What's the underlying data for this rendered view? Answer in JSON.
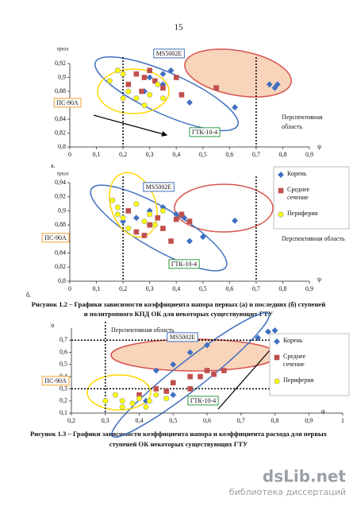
{
  "page_number": "15",
  "chart_data": [
    {
      "type": "scatter",
      "panel_label": "а.",
      "x_label": "ψ",
      "y_label": "ηпол",
      "xlim": [
        0,
        0.9
      ],
      "xticks": [
        0,
        {
          "value": 0.1,
          "label": "0,1"
        },
        {
          "value": 0.2,
          "label": "0,2"
        },
        {
          "value": 0.3,
          "label": "0,3"
        },
        {
          "value": 0.4,
          "label": "0,4"
        },
        {
          "value": 0.5,
          "label": "0,5"
        },
        {
          "value": 0.6,
          "label": "0,6"
        },
        {
          "value": 0.7,
          "label": "0,7"
        },
        {
          "value": 0.8,
          "label": "0,8"
        },
        {
          "value": 0.9,
          "label": "0,9"
        }
      ],
      "ylim": [
        0.8,
        0.92
      ],
      "yticks": [
        {
          "value": 0.8,
          "label": "0,8"
        },
        {
          "value": 0.82,
          "label": "0,82"
        },
        {
          "value": 0.84,
          "label": "0,84"
        },
        {
          "value": 0.86,
          "label": "0,86"
        },
        {
          "value": 0.88,
          "label": "0,88"
        },
        {
          "value": 0.9,
          "label": "0,9"
        },
        {
          "value": 0.92,
          "label": "0,92"
        }
      ],
      "vertical_lines": [
        0.2,
        0.7
      ],
      "series": [
        {
          "color": "#3f6fc0",
          "marker": "diamond",
          "x": [
            0.75,
            0.77,
            0.78,
            0.62,
            0.45,
            0.3,
            0.35,
            0.38,
            0.28,
            0.35
          ],
          "values": [
            0.89,
            0.885,
            0.89,
            0.857,
            0.864,
            0.9,
            0.905,
            0.91,
            0.88,
            0.89
          ]
        },
        {
          "color": "#c0504d",
          "marker": "square",
          "x": [
            0.55,
            0.3,
            0.25,
            0.28,
            0.32,
            0.4,
            0.22,
            0.27,
            0.35,
            0.42
          ],
          "values": [
            0.885,
            0.91,
            0.905,
            0.9,
            0.895,
            0.9,
            0.89,
            0.88,
            0.885,
            0.875
          ]
        },
        {
          "color": "#ffff00",
          "marker": "circle",
          "x": [
            0.18,
            0.2,
            0.15,
            0.22,
            0.25,
            0.3,
            0.33,
            0.2,
            0.28,
            0.35
          ],
          "values": [
            0.91,
            0.905,
            0.895,
            0.88,
            0.87,
            0.875,
            0.89,
            0.87,
            0.86,
            0.87
          ]
        }
      ],
      "annotations": [
        "MS5002E",
        "ПС-90А",
        "ГТК-10-4",
        "Перспективная",
        "область"
      ]
    },
    {
      "type": "scatter",
      "panel_label": "б.",
      "x_label": "ψ",
      "y_label": "ηпол",
      "legend": "right",
      "xlim": [
        0,
        0.9
      ],
      "xticks": [
        0,
        {
          "value": 0.1,
          "label": "0,1"
        },
        {
          "value": 0.2,
          "label": "0,2"
        },
        {
          "value": 0.3,
          "label": "0,3"
        },
        {
          "value": 0.4,
          "label": "0,4"
        },
        {
          "value": 0.5,
          "label": "0,5"
        },
        {
          "value": 0.6,
          "label": "0,6"
        },
        {
          "value": 0.7,
          "label": "0,7"
        },
        {
          "value": 0.8,
          "label": "0,8"
        },
        {
          "value": 0.9,
          "label": "0,9"
        }
      ],
      "ylim": [
        0.8,
        0.94
      ],
      "yticks": [
        {
          "value": 0.8,
          "label": "0,8"
        },
        {
          "value": 0.82,
          "label": "0,82"
        },
        {
          "value": 0.84,
          "label": "0,84"
        },
        {
          "value": 0.86,
          "label": "0,86"
        },
        {
          "value": 0.88,
          "label": "0,88"
        },
        {
          "value": 0.9,
          "label": "0,9"
        },
        {
          "value": 0.92,
          "label": "0,92"
        },
        {
          "value": 0.94,
          "label": "0,94"
        }
      ],
      "vertical_lines": [
        0.2,
        0.7
      ],
      "series": [
        {
          "name": "Корень",
          "color": "#3f6fc0",
          "marker": "diamond",
          "x": [
            0.62,
            0.5,
            0.45,
            0.3,
            0.35,
            0.25,
            0.4,
            0.43,
            0.2,
            0.3
          ],
          "values": [
            0.886,
            0.863,
            0.857,
            0.9,
            0.905,
            0.89,
            0.895,
            0.89,
            0.885,
            0.88
          ]
        },
        {
          "name": "Среднее сечение",
          "color": "#c0504d",
          "marker": "square",
          "x": [
            0.4,
            0.3,
            0.25,
            0.35,
            0.22,
            0.28,
            0.38,
            0.33,
            0.42,
            0.45
          ],
          "values": [
            0.888,
            0.88,
            0.87,
            0.875,
            0.9,
            0.865,
            0.857,
            0.89,
            0.895,
            0.885
          ]
        },
        {
          "name": "Периферия",
          "color": "#ffff00",
          "marker": "circle",
          "x": [
            0.16,
            0.18,
            0.2,
            0.25,
            0.3,
            0.32,
            0.22,
            0.35,
            0.28,
            0.18
          ],
          "values": [
            0.915,
            0.905,
            0.89,
            0.91,
            0.895,
            0.88,
            0.875,
            0.9,
            0.885,
            0.895
          ]
        }
      ],
      "annotations": [
        "MS5002E",
        "ПС-90А",
        "ГТК-10-4",
        "Перспективная область"
      ]
    },
    {
      "type": "scatter",
      "x_label": "φ",
      "y_label": "ψ",
      "legend": "right",
      "xlim": [
        0.2,
        1
      ],
      "xticks": [
        {
          "value": 0.2,
          "label": "0,2"
        },
        {
          "value": 0.3,
          "label": "0,3"
        },
        {
          "value": 0.4,
          "label": "0,4"
        },
        {
          "value": 0.5,
          "label": "0,5"
        },
        {
          "value": 0.6,
          "label": "0,6"
        },
        {
          "value": 0.7,
          "label": "0,7"
        },
        {
          "value": 0.8,
          "label": "0,8"
        },
        {
          "value": 0.9,
          "label": "0,9"
        },
        1
      ],
      "ylim": [
        0.1,
        0.8
      ],
      "yticks": [
        {
          "value": 0.1,
          "label": "0,1"
        },
        {
          "value": 0.2,
          "label": "0,2"
        },
        {
          "value": 0.3,
          "label": "0,3"
        },
        {
          "value": 0.4,
          "label": "0,4"
        },
        {
          "value": 0.5,
          "label": "0,5"
        },
        {
          "value": 0.6,
          "label": "0,6"
        },
        {
          "value": 0.7,
          "label": "0,7"
        }
      ],
      "vertical_lines": [
        0.3
      ],
      "horizontal_lines": [
        0.3,
        0.7
      ],
      "series": [
        {
          "name": "Корень",
          "color": "#3f6fc0",
          "marker": "diamond",
          "x": [
            0.78,
            0.8,
            0.75,
            0.6,
            0.55,
            0.5,
            0.45,
            0.62,
            0.5,
            0.42
          ],
          "values": [
            0.77,
            0.78,
            0.72,
            0.66,
            0.6,
            0.5,
            0.45,
            0.42,
            0.25,
            0.2
          ]
        },
        {
          "name": "Среднее сечение",
          "color": "#c0504d",
          "marker": "square",
          "x": [
            0.6,
            0.62,
            0.58,
            0.55,
            0.65,
            0.5,
            0.45,
            0.4,
            0.55,
            0.48
          ],
          "values": [
            0.45,
            0.42,
            0.4,
            0.4,
            0.45,
            0.35,
            0.3,
            0.25,
            0.3,
            0.28
          ]
        },
        {
          "name": "Периферия",
          "color": "#ffff00",
          "marker": "circle",
          "x": [
            0.33,
            0.35,
            0.38,
            0.4,
            0.43,
            0.45,
            0.35,
            0.42,
            0.3,
            0.48
          ],
          "values": [
            0.25,
            0.2,
            0.18,
            0.22,
            0.2,
            0.25,
            0.15,
            0.15,
            0.2,
            0.22
          ]
        }
      ],
      "annotations": [
        "Перспективная область",
        "MS5002E",
        "ПС-90А",
        "ГТК-10-4"
      ]
    }
  ],
  "captions": [
    [
      "Рисунок 1.2 – Графики зависимости коэффициента напора первых (а) и последних (б) ступеней",
      "и политропного КПД ОК для некоторых существующих ГТУ"
    ],
    [
      "Рисунок 1.3 – Графики зависимости коэффициента напора и коэффициента расхода для первых",
      "ступеней ОК некоторых существующих ГТУ"
    ]
  ],
  "watermark": {
    "brand": "dsLib.net",
    "tagline": "библиотека диссертаций"
  }
}
